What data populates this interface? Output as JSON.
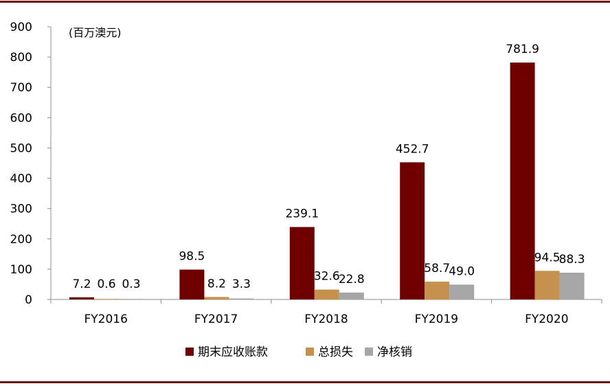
{
  "chart_data": {
    "type": "bar",
    "unit_note": "(百万澳元)",
    "categories": [
      "FY2016",
      "FY2017",
      "FY2018",
      "FY2019",
      "FY2020"
    ],
    "series": [
      {
        "name": "期末应收账款",
        "values": [
          7.2,
          98.5,
          239.1,
          452.7,
          781.9
        ],
        "labels": [
          "7.2",
          "98.5",
          "239.1",
          "452.7",
          "781.9"
        ],
        "color": "#6e0000"
      },
      {
        "name": "总损失",
        "values": [
          0.6,
          8.2,
          32.6,
          58.7,
          94.5
        ],
        "labels": [
          "0.6",
          "8.2",
          "32.6",
          "58.7",
          "94.5"
        ],
        "color": "#c6904d"
      },
      {
        "name": "净核销",
        "values": [
          0.3,
          3.3,
          22.8,
          49.0,
          88.3
        ],
        "labels": [
          "0.3",
          "3.3",
          "22.8",
          "49.0",
          "88.3"
        ],
        "color": "#a6a6a6"
      }
    ],
    "ylim": [
      0,
      900
    ],
    "yticks": [
      "0",
      "100",
      "200",
      "300",
      "400",
      "500",
      "600",
      "700",
      "800",
      "900"
    ],
    "grid": false,
    "legend_position": "bottom"
  }
}
